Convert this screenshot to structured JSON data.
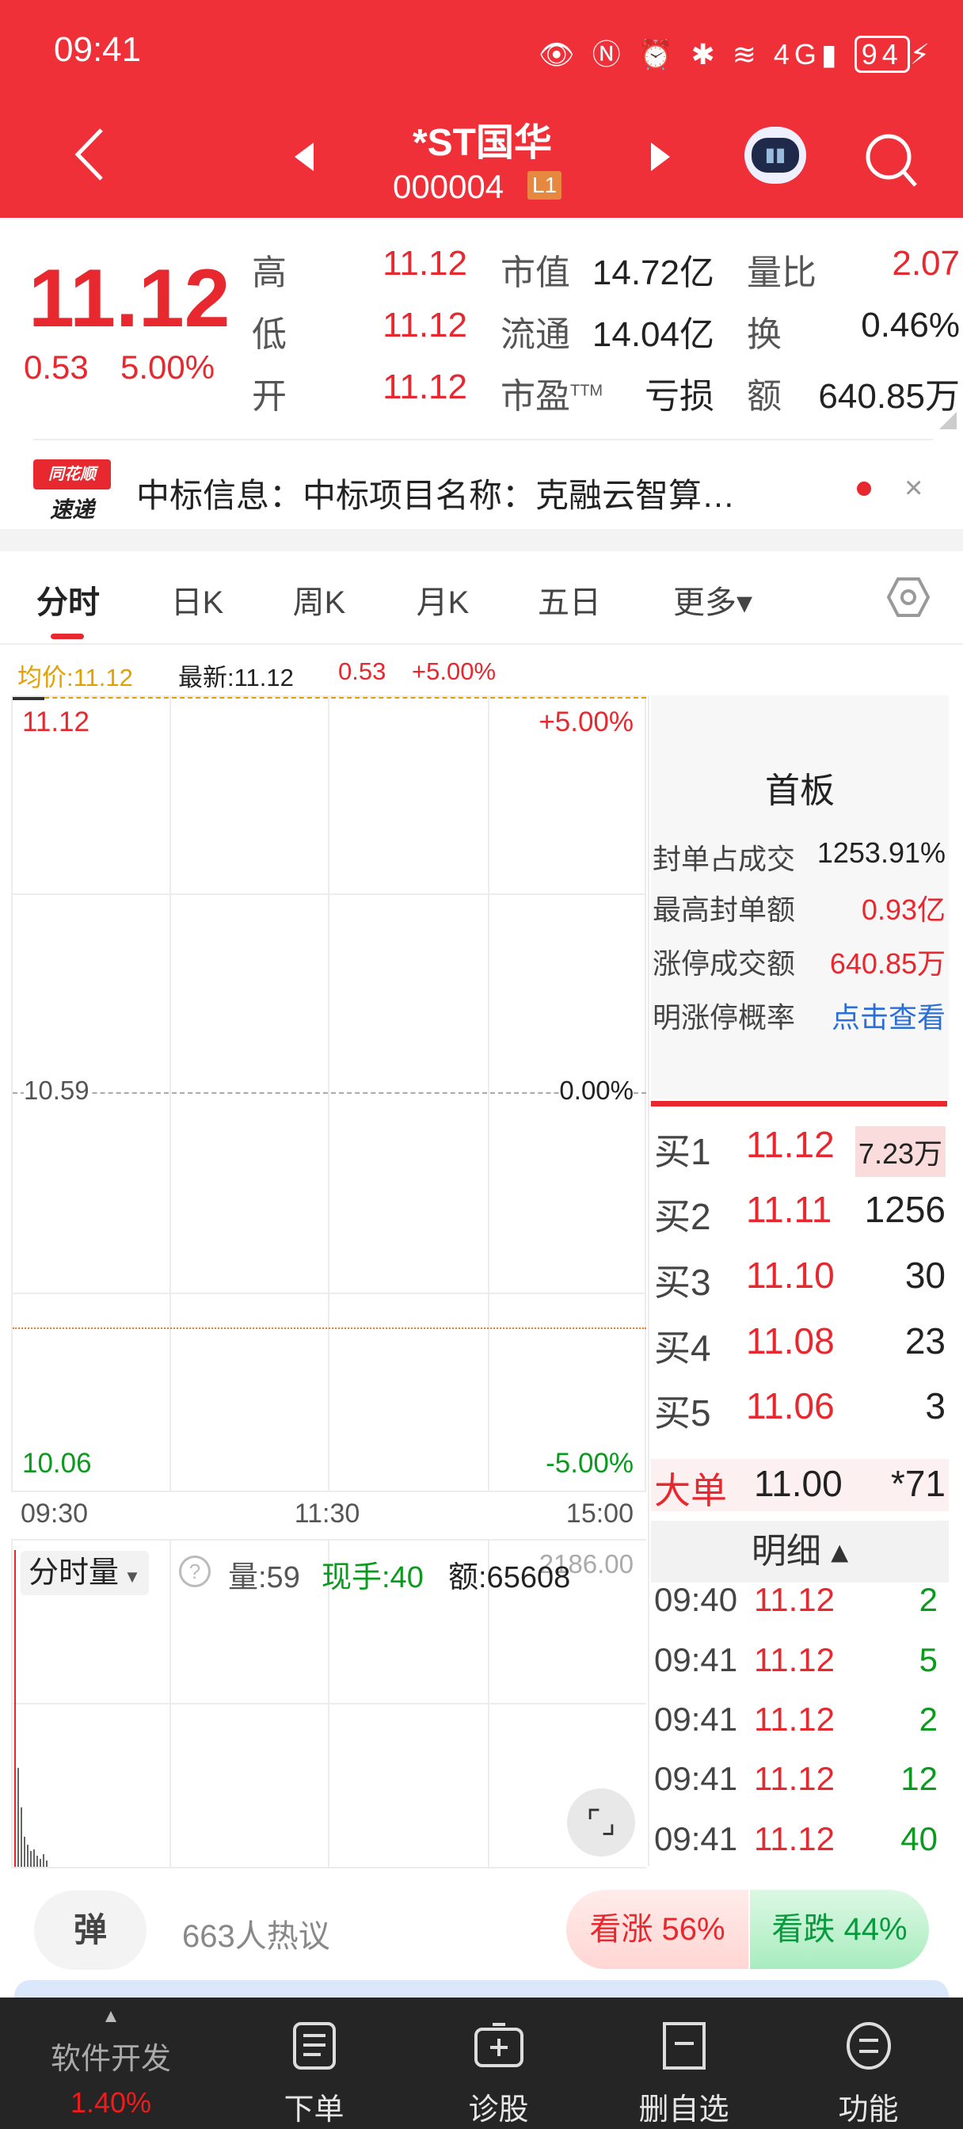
{
  "status_bar": {
    "time": "09:41",
    "battery": "94",
    "network": "4G"
  },
  "header": {
    "name": "*ST国华",
    "code": "000004",
    "level_badge": "L1"
  },
  "quote": {
    "price": "11.12",
    "change": "0.53",
    "change_pct": "5.00%",
    "high_label": "高",
    "high": "11.12",
    "low_label": "低",
    "low": "11.12",
    "open_label": "开",
    "open": "11.12",
    "mktcap_label": "市值",
    "mktcap": "14.72亿",
    "float_label": "流通",
    "float": "14.04亿",
    "pe_label": "市盈",
    "pe_sup": "TTM",
    "pe": "亏损",
    "vol_ratio_label": "量比",
    "vol_ratio": "2.07",
    "turnover_label": "换",
    "turnover": "0.46%",
    "amount_label": "额",
    "amount": "640.85万"
  },
  "news": {
    "logo_top": "同花顺",
    "logo_bottom": "速递",
    "text": "中标信息：中标项目名称：克融云智算…"
  },
  "tabs": [
    {
      "label": "分时"
    },
    {
      "label": "日K"
    },
    {
      "label": "周K"
    },
    {
      "label": "月K"
    },
    {
      "label": "五日"
    },
    {
      "label": "更多▾"
    }
  ],
  "info_line": {
    "avg": "均价:11.12",
    "latest": "最新:11.12",
    "change": "0.53",
    "pct": "+5.00%"
  },
  "chart": {
    "y_top": "11.12",
    "y_mid": "10.59",
    "y_bottom": "10.06",
    "pct_top": "+5.00%",
    "pct_mid": "0.00%",
    "pct_bottom": "-5.00%",
    "x_labels": [
      "09:30",
      "11:30",
      "15:00"
    ],
    "volume_selector": "分时量",
    "volume": "量:59",
    "current_hand": "现手:40",
    "amount": "额:65608",
    "volume_axis_max": "2186.00"
  },
  "side": {
    "title": "首板",
    "rows": [
      {
        "label": "封单占成交",
        "value": "1253.91%"
      },
      {
        "label": "最高封单额",
        "value": "0.93亿"
      },
      {
        "label": "涨停成交额",
        "value": "640.85万"
      },
      {
        "label": "明涨停概率",
        "value": "点击查看"
      }
    ],
    "bids": [
      {
        "label": "买1",
        "price": "11.12",
        "vol": "7.23万"
      },
      {
        "label": "买2",
        "price": "11.11",
        "vol": "1256"
      },
      {
        "label": "买3",
        "price": "11.10",
        "vol": "30"
      },
      {
        "label": "买4",
        "price": "11.08",
        "vol": "23"
      },
      {
        "label": "买5",
        "price": "11.06",
        "vol": "3"
      }
    ],
    "big_order": {
      "label": "大单",
      "price": "11.00",
      "vol": "*71"
    },
    "detail_header": "明细 ▴",
    "ticks": [
      {
        "time": "09:40",
        "price": "11.12",
        "vol": "2"
      },
      {
        "time": "09:41",
        "price": "11.12",
        "vol": "5"
      },
      {
        "time": "09:41",
        "price": "11.12",
        "vol": "2"
      },
      {
        "time": "09:41",
        "price": "11.12",
        "vol": "12"
      },
      {
        "time": "09:41",
        "price": "11.12",
        "vol": "40"
      }
    ]
  },
  "comments": {
    "danmu": "弹",
    "count": "663人热议",
    "bull": "看涨 56%",
    "bear": "看跌 44%"
  },
  "bottom_nav": {
    "sector": "软件开发",
    "sector_pct": "1.40%",
    "items": [
      {
        "label": "下单"
      },
      {
        "label": "诊股"
      },
      {
        "label": "删自选"
      },
      {
        "label": "功能"
      }
    ]
  },
  "colors": {
    "brand": "#ef3039",
    "up": "#e8282f",
    "down": "#0a9a1e",
    "avg": "#e3a000"
  }
}
